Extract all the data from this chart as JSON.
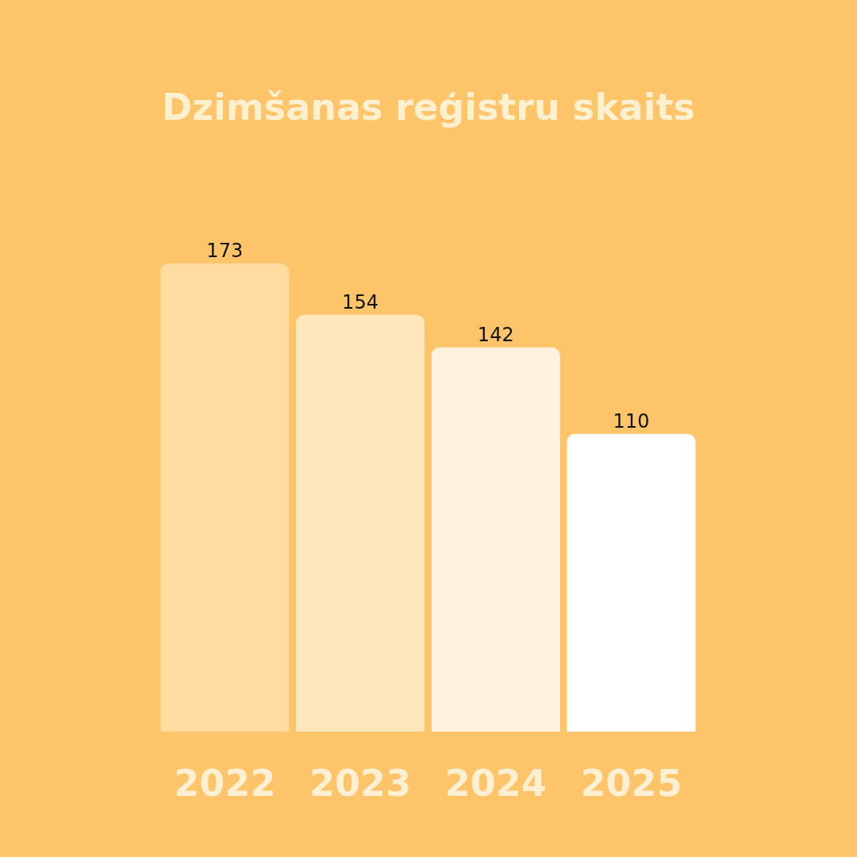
{
  "chart_data": {
    "type": "bar",
    "title": "Dzimšanas reģistru skaits",
    "categories": [
      "2022",
      "2023",
      "2024",
      "2025"
    ],
    "values": [
      173,
      154,
      142,
      110
    ],
    "colors": [
      "#ffdc9f",
      "#ffe6bb",
      "#fff2df",
      "#ffffff"
    ],
    "data_labels": true
  }
}
